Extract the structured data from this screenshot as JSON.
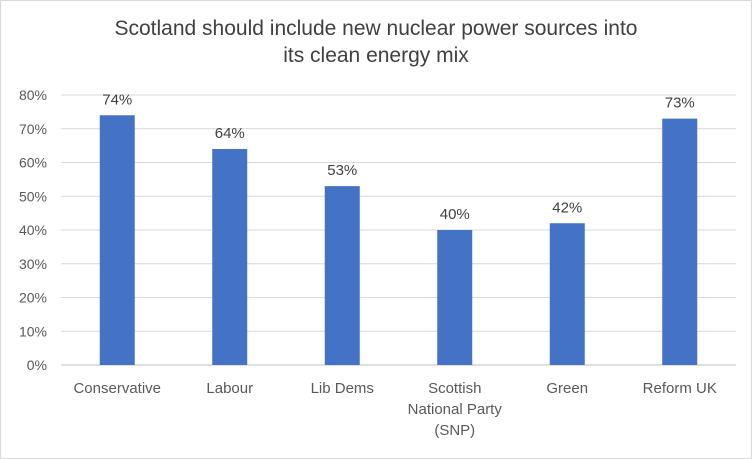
{
  "chart_data": {
    "type": "bar",
    "title": "Scotland should include new nuclear power sources into its clean energy mix",
    "categories": [
      "Conservative",
      "Labour",
      "Lib Dems",
      "Scottish National Party (SNP)",
      "Green",
      "Reform UK"
    ],
    "category_lines": [
      [
        "Conservative"
      ],
      [
        "Labour"
      ],
      [
        "Lib Dems"
      ],
      [
        "Scottish",
        "National Party",
        "(SNP)"
      ],
      [
        "Green"
      ],
      [
        "Reform UK"
      ]
    ],
    "values": [
      74,
      64,
      53,
      40,
      42,
      73
    ],
    "data_labels": [
      "74%",
      "64%",
      "53%",
      "40%",
      "42%",
      "73%"
    ],
    "ylim": [
      0,
      80
    ],
    "yticks": [
      0,
      10,
      20,
      30,
      40,
      50,
      60,
      70,
      80
    ],
    "ytick_labels": [
      "0%",
      "10%",
      "20%",
      "30%",
      "40%",
      "50%",
      "60%",
      "70%",
      "80%"
    ],
    "xlabel": "",
    "ylabel": "",
    "grid": true,
    "legend": "none",
    "colors": {
      "bar": "#4472c4",
      "grid": "#d9d9d9",
      "axis": "#bfbfbf"
    }
  }
}
